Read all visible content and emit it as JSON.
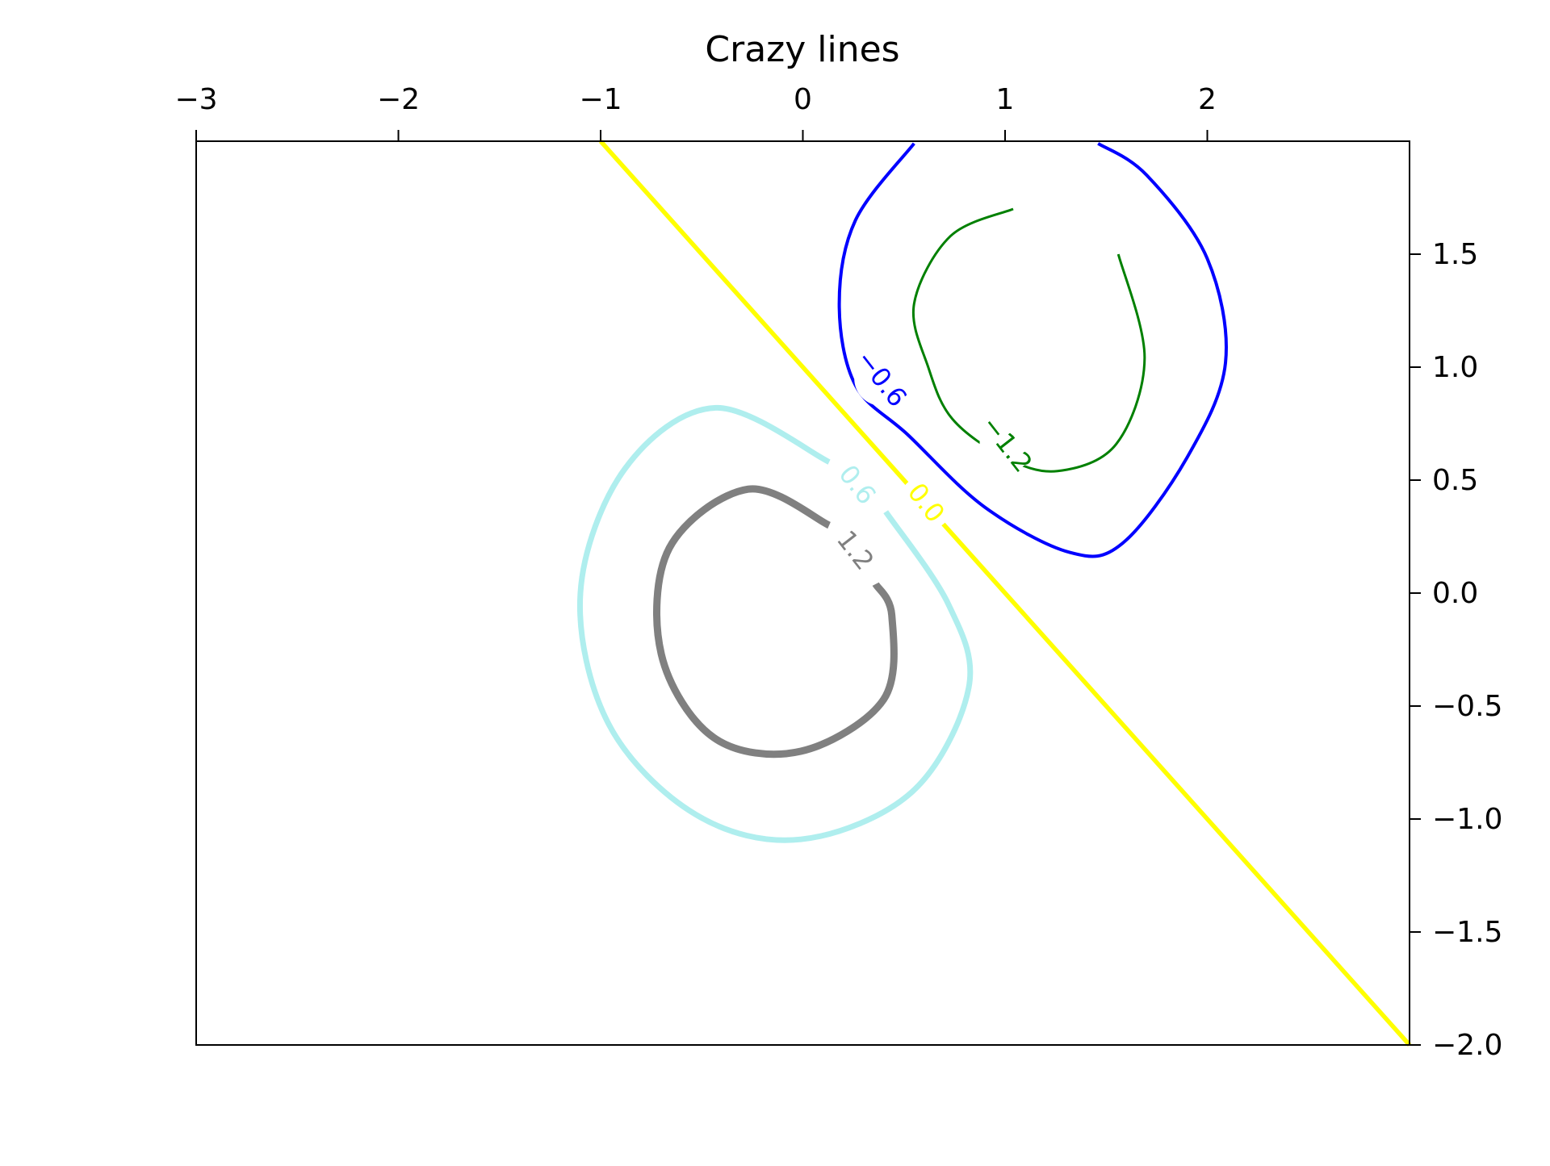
{
  "chart_data": {
    "type": "contour",
    "title": "Crazy lines",
    "xlabel": "",
    "ylabel": "",
    "xlim": [
      -3,
      3
    ],
    "ylim": [
      -2,
      2
    ],
    "x_axis_position": "top",
    "y_axis_position": "right",
    "grid": false,
    "x_ticks": [
      -3,
      -2,
      -1,
      0,
      1,
      2
    ],
    "x_tick_labels": [
      "−3",
      "−2",
      "−1",
      "0",
      "1",
      "2"
    ],
    "y_ticks": [
      1.5,
      1.0,
      0.5,
      0.0,
      -0.5,
      -1.0,
      -1.5,
      -2.0
    ],
    "y_tick_labels": [
      "1.5",
      "1.0",
      "0.5",
      "0.0",
      "−0.5",
      "−1.0",
      "−1.5",
      "−2.0"
    ],
    "series": [
      {
        "level": "−1.2",
        "color": "#008000",
        "points": [
          [
            1.04,
            1.7
          ],
          [
            0.73,
            1.58
          ],
          [
            0.55,
            1.28
          ],
          [
            0.62,
            1.0
          ],
          [
            0.74,
            0.77
          ],
          [
            1.0,
            0.6
          ],
          [
            1.26,
            0.54
          ],
          [
            1.55,
            0.66
          ],
          [
            1.69,
            1.04
          ],
          [
            1.56,
            1.5
          ]
        ],
        "label_at": [
          1.01,
          0.66
        ]
      },
      {
        "level": "−0.6",
        "color": "#0000ff",
        "points": [
          [
            0.55,
            1.99
          ],
          [
            0.26,
            1.65
          ],
          [
            0.18,
            1.28
          ],
          [
            0.26,
            0.92
          ],
          [
            0.52,
            0.7
          ],
          [
            0.9,
            0.38
          ],
          [
            1.32,
            0.18
          ],
          [
            1.58,
            0.22
          ],
          [
            1.9,
            0.6
          ],
          [
            2.09,
            1.02
          ],
          [
            2.0,
            1.48
          ],
          [
            1.7,
            1.85
          ],
          [
            1.46,
            1.99
          ]
        ],
        "label_at": [
          0.39,
          0.95
        ]
      },
      {
        "level": "0.0",
        "color": "#ffff00",
        "points": [
          [
            -1.0,
            2.0
          ],
          [
            3.0,
            -2.0
          ]
        ],
        "label_at": [
          0.61,
          0.4
        ]
      },
      {
        "level": "0.6",
        "color": "#afeeee",
        "points": [
          [
            0.13,
            0.58
          ],
          [
            -0.43,
            0.82
          ],
          [
            -0.88,
            0.55
          ],
          [
            -1.1,
            0.0
          ],
          [
            -0.96,
            -0.58
          ],
          [
            -0.53,
            -0.98
          ],
          [
            -0.01,
            -1.09
          ],
          [
            0.54,
            -0.88
          ],
          [
            0.82,
            -0.42
          ],
          [
            0.72,
            -0.05
          ],
          [
            0.41,
            0.36
          ]
        ],
        "label_at": [
          0.27,
          0.48
        ]
      },
      {
        "level": "1.2",
        "color": "#808080",
        "points": [
          [
            0.13,
            0.3
          ],
          [
            -0.27,
            0.46
          ],
          [
            -0.66,
            0.2
          ],
          [
            -0.7,
            -0.27
          ],
          [
            -0.44,
            -0.64
          ],
          [
            -0.01,
            -0.7
          ],
          [
            0.4,
            -0.47
          ],
          [
            0.44,
            -0.1
          ],
          [
            0.36,
            0.04
          ]
        ],
        "label_at": [
          0.26,
          0.19
        ]
      }
    ]
  }
}
